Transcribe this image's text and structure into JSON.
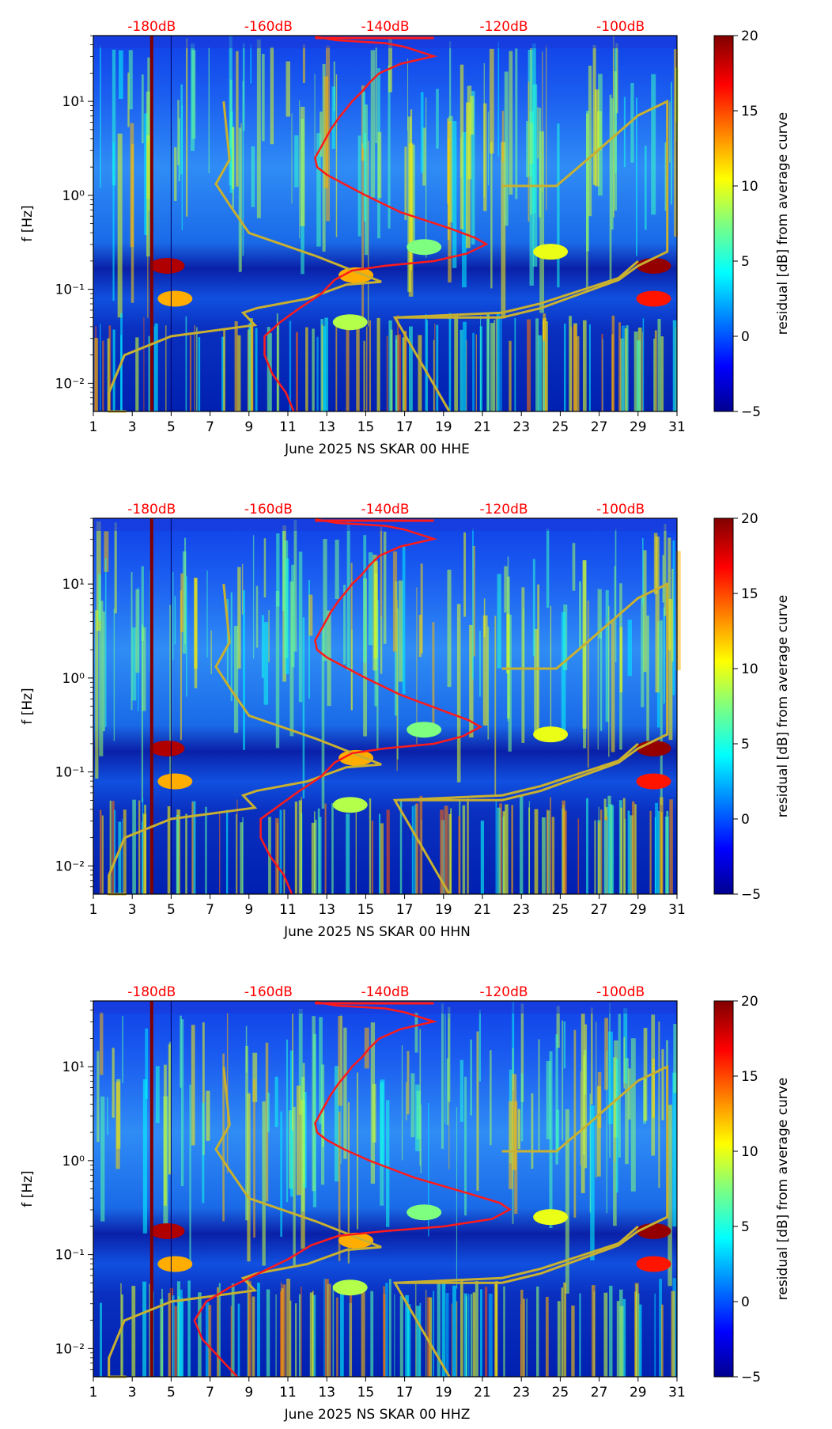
{
  "colors": {
    "spectral_curve": "#ff1a1a",
    "model_curve": "#c8b030",
    "db_labels": "#ff0000",
    "axis": "#000000"
  },
  "colorbar": {
    "label": "residual [dB] from average curve",
    "min": -5,
    "max": 20,
    "ticks": [
      "20",
      "15",
      "10",
      "5",
      "0",
      "−5"
    ],
    "tick_values": [
      20,
      15,
      10,
      5,
      0,
      -5
    ],
    "colormap": "jet"
  },
  "chart_data": [
    {
      "type": "heatmap",
      "title": "",
      "xlabel": "June 2025 NS SKAR 00 HHE",
      "ylabel": "f [Hz]",
      "xlim": [
        1,
        31
      ],
      "ylim_log10": [
        -2.3,
        1.7
      ],
      "x_ticks": [
        "1",
        "3",
        "5",
        "7",
        "9",
        "11",
        "13",
        "15",
        "17",
        "19",
        "21",
        "23",
        "25",
        "27",
        "29",
        "31"
      ],
      "y_ticks": [
        "10⁻²",
        "10⁻¹",
        "10⁰",
        "10¹"
      ],
      "y_tick_values": [
        -2,
        -1,
        0,
        1
      ],
      "top_labels": [
        "-180dB",
        "-160dB",
        "-140dB",
        "-120dB",
        "-100dB"
      ],
      "top_label_positions": [
        4.0,
        10.0,
        16.0,
        22.1,
        28.1
      ],
      "red_curve_day": [
        12.4,
        13.5,
        16,
        17,
        18.5,
        16.8,
        15.7,
        15.2,
        14.8,
        14.3,
        14.0,
        13.6,
        13.2,
        12.8,
        12.4,
        12.5,
        13.0,
        13.9,
        15.0,
        16.8,
        19.3,
        20.6,
        21.2,
        20.2,
        18.5,
        16.0,
        14.3,
        13.4,
        12.7,
        11.6,
        10.6,
        9.8,
        9.8,
        10.2,
        10.9,
        11.3
      ],
      "red_curve_log10f": [
        1.69,
        1.65,
        1.62,
        1.58,
        1.48,
        1.4,
        1.3,
        1.2,
        1.1,
        1.0,
        0.92,
        0.82,
        0.7,
        0.55,
        0.4,
        0.3,
        0.22,
        0.12,
        0.0,
        -0.18,
        -0.35,
        -0.45,
        -0.52,
        -0.62,
        -0.7,
        -0.75,
        -0.8,
        -0.9,
        -1.05,
        -1.2,
        -1.35,
        -1.5,
        -1.7,
        -1.9,
        -2.1,
        -2.3
      ],
      "yellow_curve_day": [
        7.7,
        8.0,
        7.3,
        8.0,
        9.0,
        12.5,
        15.8,
        14.0,
        12.0,
        9.4,
        8.7,
        9.3,
        5.0,
        2.6,
        1.8,
        1.8,
        2.5,
        2.7,
        null,
        16.5,
        22.0,
        24.0,
        28.0,
        29.0,
        30.5,
        30.5,
        29.0,
        26.5,
        24.8,
        22.0,
        null,
        19.3,
        16.5,
        22.0,
        24.0,
        28.0,
        29.0
      ],
      "yellow_curve_log10f": [
        1.0,
        0.38,
        0.12,
        -0.1,
        -0.4,
        -0.65,
        -0.92,
        -0.95,
        -1.1,
        -1.2,
        -1.25,
        -1.38,
        -1.5,
        -1.7,
        -2.1,
        -2.3,
        -2.3,
        -2.3,
        null,
        -1.3,
        -1.3,
        -1.2,
        -0.9,
        -0.75,
        -0.6,
        1.0,
        0.85,
        0.4,
        0.1,
        0.1,
        null,
        -2.3,
        -1.3,
        -1.25,
        -1.15,
        -0.88,
        -0.7
      ]
    },
    {
      "type": "heatmap",
      "title": "",
      "xlabel": "June 2025 NS SKAR 00 HHN",
      "ylabel": "f [Hz]",
      "xlim": [
        1,
        31
      ],
      "ylim_log10": [
        -2.3,
        1.7
      ],
      "x_ticks": [
        "1",
        "3",
        "5",
        "7",
        "9",
        "11",
        "13",
        "15",
        "17",
        "19",
        "21",
        "23",
        "25",
        "27",
        "29",
        "31"
      ],
      "y_ticks": [
        "10⁻²",
        "10⁻¹",
        "10⁰",
        "10¹"
      ],
      "y_tick_values": [
        -2,
        -1,
        0,
        1
      ],
      "top_labels": [
        "-180dB",
        "-160dB",
        "-140dB",
        "-120dB",
        "-100dB"
      ],
      "top_label_positions": [
        4.0,
        10.0,
        16.0,
        22.1,
        28.1
      ],
      "red_curve_day": [
        12.4,
        13.5,
        16,
        17,
        18.5,
        16.8,
        15.7,
        15.2,
        14.8,
        14.3,
        14.0,
        13.6,
        13.2,
        12.8,
        12.4,
        12.5,
        13.0,
        13.9,
        15.0,
        16.8,
        19.0,
        20.3,
        20.9,
        20.0,
        18.5,
        16.0,
        14.3,
        13.4,
        12.7,
        11.6,
        10.6,
        9.6,
        9.6,
        10.1,
        10.8,
        11.2
      ],
      "red_curve_log10f": [
        1.69,
        1.65,
        1.62,
        1.58,
        1.48,
        1.4,
        1.3,
        1.2,
        1.1,
        1.0,
        0.92,
        0.82,
        0.7,
        0.55,
        0.4,
        0.3,
        0.22,
        0.12,
        0.0,
        -0.18,
        -0.35,
        -0.45,
        -0.52,
        -0.62,
        -0.7,
        -0.75,
        -0.8,
        -0.9,
        -1.05,
        -1.2,
        -1.35,
        -1.5,
        -1.7,
        -1.9,
        -2.1,
        -2.3
      ],
      "yellow_curve_day": [
        7.7,
        8.0,
        7.3,
        8.0,
        9.0,
        12.5,
        15.8,
        14.0,
        12.0,
        9.4,
        8.7,
        9.3,
        5.0,
        2.6,
        1.8,
        1.8,
        2.5,
        2.7,
        null,
        16.5,
        22.0,
        24.0,
        28.0,
        29.0,
        30.5,
        30.5,
        29.0,
        26.5,
        24.8,
        22.0,
        null,
        19.3,
        16.5,
        22.0,
        24.0,
        28.0,
        29.0
      ],
      "yellow_curve_log10f": [
        1.0,
        0.38,
        0.12,
        -0.1,
        -0.4,
        -0.65,
        -0.92,
        -0.95,
        -1.1,
        -1.2,
        -1.25,
        -1.38,
        -1.5,
        -1.7,
        -2.1,
        -2.3,
        -2.3,
        -2.3,
        null,
        -1.3,
        -1.3,
        -1.2,
        -0.9,
        -0.75,
        -0.6,
        1.0,
        0.85,
        0.4,
        0.1,
        0.1,
        null,
        -2.3,
        -1.3,
        -1.25,
        -1.15,
        -0.88,
        -0.7
      ]
    },
    {
      "type": "heatmap",
      "title": "",
      "xlabel": "June 2025 NS SKAR 00 HHZ",
      "ylabel": "f [Hz]",
      "xlim": [
        1,
        31
      ],
      "ylim_log10": [
        -2.3,
        1.7
      ],
      "x_ticks": [
        "1",
        "3",
        "5",
        "7",
        "9",
        "11",
        "13",
        "15",
        "17",
        "19",
        "21",
        "23",
        "25",
        "27",
        "29",
        "31"
      ],
      "y_ticks": [
        "10⁻²",
        "10⁻¹",
        "10⁰",
        "10¹"
      ],
      "y_tick_values": [
        -2,
        -1,
        0,
        1
      ],
      "top_labels": [
        "-180dB",
        "-160dB",
        "-140dB",
        "-120dB",
        "-100dB"
      ],
      "top_label_positions": [
        4.0,
        10.0,
        16.0,
        22.1,
        28.1
      ],
      "red_curve_day": [
        12.4,
        13.5,
        16,
        17,
        18.5,
        16.8,
        15.7,
        15.2,
        14.8,
        14.3,
        14.0,
        13.6,
        13.2,
        12.8,
        12.4,
        12.5,
        13.0,
        13.9,
        15.2,
        17.5,
        20.3,
        21.9,
        22.4,
        21.5,
        19.0,
        16.0,
        13.6,
        12.2,
        11.0,
        9.5,
        8.0,
        6.8,
        6.2,
        6.6,
        7.5,
        8.4
      ],
      "red_curve_log10f": [
        1.69,
        1.65,
        1.62,
        1.58,
        1.48,
        1.4,
        1.3,
        1.2,
        1.1,
        1.0,
        0.92,
        0.82,
        0.7,
        0.55,
        0.4,
        0.3,
        0.22,
        0.12,
        0.0,
        -0.18,
        -0.35,
        -0.45,
        -0.52,
        -0.62,
        -0.7,
        -0.75,
        -0.8,
        -0.9,
        -1.05,
        -1.2,
        -1.35,
        -1.5,
        -1.7,
        -1.9,
        -2.1,
        -2.3
      ],
      "yellow_curve_day": [
        7.7,
        8.0,
        7.3,
        8.0,
        9.0,
        12.5,
        15.8,
        14.0,
        12.0,
        9.4,
        8.7,
        9.3,
        5.0,
        2.6,
        1.8,
        1.8,
        2.5,
        2.7,
        null,
        16.5,
        22.0,
        24.0,
        28.0,
        29.0,
        30.5,
        30.5,
        29.0,
        26.5,
        24.8,
        22.0,
        null,
        19.3,
        16.5,
        22.0,
        24.0,
        28.0,
        29.0
      ],
      "yellow_curve_log10f": [
        1.0,
        0.38,
        0.12,
        -0.1,
        -0.4,
        -0.65,
        -0.92,
        -0.95,
        -1.1,
        -1.2,
        -1.25,
        -1.38,
        -1.5,
        -1.7,
        -2.1,
        -2.3,
        -2.3,
        -2.3,
        null,
        -1.3,
        -1.3,
        -1.2,
        -0.9,
        -0.75,
        -0.6,
        1.0,
        0.85,
        0.4,
        0.1,
        0.1,
        null,
        -2.3,
        -1.3,
        -1.25,
        -1.15,
        -0.88,
        -0.7
      ]
    }
  ]
}
